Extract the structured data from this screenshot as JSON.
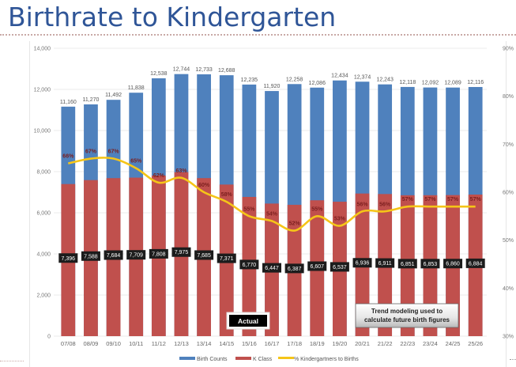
{
  "slide": {
    "title": "Birthrate to Kindergarten"
  },
  "chart_data": {
    "type": "bar",
    "subtype": "overlapped-bar-with-line",
    "title": "Birthrate to Kindergarten",
    "categories": [
      "07/08",
      "08/09",
      "09/10",
      "10/11",
      "11/12",
      "12/13",
      "13/14",
      "14/15",
      "15/16",
      "16/17",
      "17/18",
      "18/19",
      "19/20",
      "20/21",
      "21/22",
      "22/23",
      "23/24",
      "24/25",
      "25/26"
    ],
    "series": [
      {
        "name": "Birth Counts",
        "type": "bar",
        "axis": "left",
        "color": "#4f81bd",
        "values": [
          11160,
          11270,
          11492,
          11838,
          12538,
          12744,
          12733,
          12688,
          12235,
          11920,
          12258,
          12086,
          12434,
          12374,
          12243,
          12118,
          12092,
          12089,
          12116
        ],
        "labels": [
          "11,160",
          "11,270",
          "11,492",
          "11,838",
          "12,538",
          "12,744",
          "12,733",
          "12,688",
          "12,235",
          "11,920",
          "12,258",
          "12,086",
          "12,434",
          "12,374",
          "12,243",
          "12,118",
          "12,092",
          "12,089",
          "12,116"
        ]
      },
      {
        "name": "K Class",
        "type": "bar",
        "axis": "left",
        "color": "#c0504d",
        "values": [
          7396,
          7588,
          7684,
          7709,
          7808,
          7975,
          7685,
          7371,
          6770,
          6447,
          6387,
          6607,
          6537,
          6936,
          6911,
          6851,
          6853,
          6860,
          6884
        ],
        "labels": [
          "7,396",
          "7,588",
          "7,684",
          "7,709",
          "7,808",
          "7,975",
          "7,685",
          "7,371",
          "6,770",
          "6,447",
          "6,387",
          "6,607",
          "6,537",
          "6,936",
          "6,911",
          "6,851",
          "6,853",
          "6,860",
          "6,884"
        ]
      },
      {
        "name": "% Kindergartners to Births",
        "type": "line",
        "axis": "right",
        "color": "#f5c518",
        "values": [
          66,
          67,
          67,
          65,
          62,
          63,
          60,
          58,
          55,
          54,
          52,
          55,
          53,
          56,
          56,
          57,
          57,
          57,
          57
        ],
        "labels": [
          "66%",
          "67%",
          "67%",
          "65%",
          "62%",
          "63%",
          "60%",
          "58%",
          "55%",
          "54%",
          "52%",
          "55%",
          "53%",
          "56%",
          "56%",
          "57%",
          "57%",
          "57%",
          "57%"
        ]
      }
    ],
    "y_left": {
      "min": 0,
      "max": 14000,
      "ticks": [
        "0",
        "2,000",
        "4,000",
        "6,000",
        "8,000",
        "10,000",
        "12,000",
        "14,000"
      ]
    },
    "y_right": {
      "min": 30,
      "max": 90,
      "unit": "%",
      "ticks": [
        "30%",
        "40%",
        "50%",
        "60%",
        "70%",
        "80%",
        "90%"
      ]
    },
    "xlabel": "",
    "ylabel": "",
    "grid": true,
    "legend": {
      "placement": "bottom-center",
      "entries": [
        "Birth Counts",
        "K Class",
        "% Kindergartners to Births"
      ]
    },
    "annotations": {
      "actual": "Actual",
      "trend_line1": "Trend modeling used to",
      "trend_line2": "calculate future birth figures"
    }
  }
}
